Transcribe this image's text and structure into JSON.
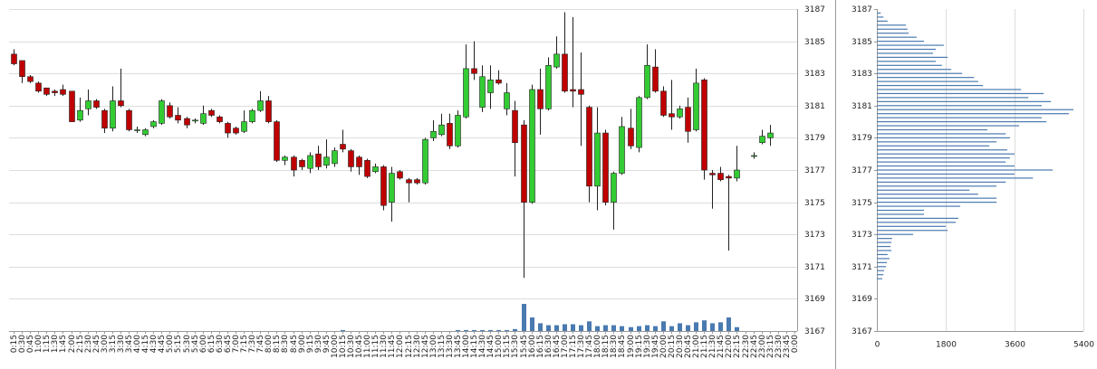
{
  "chart_data": [
    {
      "type": "candlestick",
      "categories": [
        "0:15",
        "0:30",
        "0:45",
        "1:00",
        "1:15",
        "1:30",
        "1:45",
        "2:00",
        "2:15",
        "2:30",
        "2:45",
        "3:00",
        "3:15",
        "3:30",
        "3:45",
        "4:00",
        "4:15",
        "4:30",
        "4:45",
        "5:00",
        "5:15",
        "5:30",
        "5:45",
        "6:00",
        "6:15",
        "6:30",
        "6:45",
        "7:00",
        "7:15",
        "7:30",
        "7:45",
        "8:00",
        "8:15",
        "8:30",
        "8:45",
        "9:00",
        "9:15",
        "9:30",
        "9:45",
        "10:00",
        "10:15",
        "10:30",
        "10:45",
        "11:00",
        "11:15",
        "11:30",
        "11:45",
        "12:00",
        "12:15",
        "12:30",
        "12:45",
        "13:00",
        "13:15",
        "13:30",
        "13:45",
        "14:00",
        "14:15",
        "14:30",
        "14:45",
        "15:00",
        "15:15",
        "15:30",
        "15:45",
        "16:00",
        "16:15",
        "16:30",
        "16:45",
        "17:00",
        "17:15",
        "17:30",
        "17:45",
        "18:00",
        "18:15",
        "18:30",
        "18:45",
        "19:00",
        "19:15",
        "19:30",
        "19:45",
        "20:00",
        "20:15",
        "20:30",
        "20:45",
        "21:00",
        "21:15",
        "21:30",
        "21:45",
        "22:00",
        "22:15",
        "22:30",
        "22:45",
        "23:00",
        "23:15",
        "23:30",
        "23:45",
        "0:00"
      ],
      "open": [
        3184.2,
        3183.8,
        3182.8,
        3182.4,
        3182.1,
        3181.9,
        3182.0,
        3181.9,
        3180.1,
        3180.8,
        3181.3,
        3180.7,
        3179.6,
        3181.3,
        3180.7,
        3179.5,
        3179.2,
        3179.7,
        3179.9,
        3181.0,
        3180.4,
        3180.2,
        3180.1,
        3179.9,
        3180.7,
        3180.3,
        3179.9,
        3179.6,
        3179.4,
        3180.0,
        3180.7,
        3181.3,
        3180.0,
        3177.6,
        3177.8,
        3177.6,
        3177.1,
        3178.0,
        3177.3,
        3177.4,
        3178.6,
        3178.2,
        3177.8,
        3177.6,
        3176.9,
        3177.2,
        3175.0,
        3176.9,
        3176.4,
        3176.4,
        3176.2,
        3179.0,
        3179.2,
        3179.9,
        3178.5,
        3180.3,
        3183.3,
        3180.9,
        3181.8,
        3182.6,
        3180.8,
        3180.7,
        3179.8,
        3175.0,
        3182.0,
        3180.8,
        3183.4,
        3184.2,
        3182.0,
        3182.0,
        3180.9,
        3176.0,
        3179.3,
        3175.0,
        3176.8,
        3179.6,
        3178.4,
        3181.5,
        3183.4,
        3181.9,
        3180.5,
        3180.3,
        3180.9,
        3179.5,
        3182.6,
        3176.8,
        3176.8,
        3176.6,
        3176.5,
        null,
        3177.9,
        3178.7,
        3179.0,
        null,
        null,
        null
      ],
      "high": [
        3184.5,
        3183.8,
        3182.9,
        3182.5,
        3182.1,
        3182.0,
        3182.3,
        3181.9,
        3181.5,
        3182.0,
        3181.4,
        3180.8,
        3182.2,
        3183.3,
        3180.8,
        3179.7,
        3179.6,
        3180.1,
        3181.4,
        3181.2,
        3180.9,
        3180.3,
        3180.2,
        3181.0,
        3180.8,
        3180.4,
        3180.0,
        3179.7,
        3180.7,
        3180.8,
        3181.9,
        3181.6,
        3180.1,
        3177.9,
        3177.9,
        3177.7,
        3178.1,
        3178.5,
        3178.9,
        3178.4,
        3179.5,
        3178.3,
        3177.9,
        3177.7,
        3177.4,
        3177.3,
        3177.2,
        3177.0,
        3176.5,
        3176.5,
        3179.0,
        3180.1,
        3180.5,
        3180.5,
        3180.7,
        3184.8,
        3185.0,
        3183.5,
        3183.5,
        3183.2,
        3182.4,
        3181.3,
        3180.1,
        3182.3,
        3183.3,
        3184.0,
        3185.3,
        3186.8,
        3186.5,
        3184.3,
        3181.0,
        3180.9,
        3179.5,
        3176.9,
        3180.3,
        3180.8,
        3181.6,
        3184.8,
        3184.5,
        3182.2,
        3182.6,
        3181.0,
        3181.5,
        3183.3,
        3182.7,
        3177.0,
        3177.2,
        3176.7,
        3178.5,
        null,
        3178.1,
        3179.5,
        3179.8,
        null,
        null,
        null
      ],
      "low": [
        3183.5,
        3182.4,
        3182.4,
        3181.8,
        3181.6,
        3181.6,
        3181.6,
        3180.0,
        3180.0,
        3180.4,
        3180.8,
        3179.3,
        3179.4,
        3180.9,
        3179.4,
        3179.3,
        3179.1,
        3179.6,
        3179.8,
        3180.2,
        3179.9,
        3179.6,
        3179.9,
        3179.8,
        3180.3,
        3179.9,
        3179.0,
        3179.2,
        3179.3,
        3179.9,
        3180.6,
        3179.9,
        3177.5,
        3177.3,
        3176.6,
        3177.0,
        3176.8,
        3177.0,
        3177.1,
        3177.2,
        3178.1,
        3176.9,
        3176.7,
        3176.5,
        3176.8,
        3174.5,
        3173.8,
        3176.4,
        3175.0,
        3176.1,
        3176.1,
        3178.8,
        3179.1,
        3178.3,
        3178.4,
        3180.2,
        3182.6,
        3180.6,
        3180.8,
        3182.3,
        3180.4,
        3176.6,
        3170.3,
        3174.9,
        3179.2,
        3180.7,
        3183.3,
        3181.8,
        3180.9,
        3178.5,
        3175.0,
        3174.5,
        3174.8,
        3173.3,
        3176.7,
        3178.3,
        3178.1,
        3181.4,
        3181.8,
        3180.3,
        3179.5,
        3180.2,
        3178.7,
        3179.4,
        3176.4,
        3174.6,
        3176.3,
        3172.0,
        3176.3,
        null,
        3177.7,
        3178.6,
        3178.5,
        null,
        null,
        null
      ],
      "close": [
        3183.6,
        3182.8,
        3182.5,
        3181.9,
        3181.7,
        3181.8,
        3181.7,
        3180.0,
        3180.7,
        3181.3,
        3180.9,
        3179.6,
        3181.3,
        3181.0,
        3179.5,
        3179.5,
        3179.5,
        3180.0,
        3181.3,
        3180.3,
        3180.1,
        3179.8,
        3180.1,
        3180.5,
        3180.4,
        3180.0,
        3179.3,
        3179.3,
        3180.0,
        3180.7,
        3181.3,
        3180.0,
        3177.6,
        3177.8,
        3177.0,
        3177.2,
        3177.9,
        3177.2,
        3177.8,
        3178.2,
        3178.3,
        3177.2,
        3177.2,
        3176.6,
        3177.2,
        3174.8,
        3176.8,
        3176.5,
        3176.2,
        3176.2,
        3178.9,
        3179.4,
        3179.8,
        3178.5,
        3180.4,
        3183.3,
        3183.0,
        3182.8,
        3182.6,
        3182.4,
        3181.8,
        3178.7,
        3175.0,
        3182.0,
        3180.8,
        3183.5,
        3184.2,
        3181.9,
        3181.9,
        3181.7,
        3176.0,
        3179.3,
        3175.0,
        3176.8,
        3179.7,
        3178.5,
        3181.5,
        3183.5,
        3181.9,
        3180.4,
        3180.3,
        3180.8,
        3179.4,
        3182.4,
        3177.0,
        3176.7,
        3176.4,
        3176.5,
        3177.0,
        null,
        3177.9,
        3179.1,
        3179.3,
        null,
        null,
        null
      ],
      "volume": [
        0,
        0,
        0,
        0,
        0,
        0,
        0,
        0,
        0,
        0,
        0,
        0,
        0,
        0,
        0,
        0,
        0,
        0,
        0,
        0,
        0,
        0,
        0,
        0,
        0,
        0,
        0,
        0,
        0,
        0,
        0,
        0,
        0,
        0,
        0,
        0,
        0,
        0,
        0,
        0,
        1,
        0,
        0,
        0,
        0,
        0,
        0,
        0,
        0,
        0,
        0,
        0,
        0,
        0,
        1,
        1,
        1,
        1,
        1,
        1,
        1,
        2,
        28,
        14,
        8,
        6,
        6,
        7,
        7,
        6,
        10,
        5,
        6,
        6,
        5,
        4,
        5,
        6,
        5,
        10,
        5,
        8,
        6,
        9,
        11,
        8,
        9,
        14,
        4,
        null,
        null,
        null,
        null,
        null,
        null,
        null
      ],
      "up_color": "#33cc33",
      "down_color": "#c00000",
      "volume_color": "#4a7ab0",
      "ylim": [
        3167,
        3187
      ],
      "yticks": [
        3167,
        3169,
        3171,
        3173,
        3175,
        3177,
        3179,
        3181,
        3183,
        3185,
        3187
      ],
      "grid": true
    },
    {
      "type": "profile",
      "prices": [
        3186.75,
        3186.5,
        3186.25,
        3186,
        3185.75,
        3185.5,
        3185.25,
        3185,
        3184.75,
        3184.5,
        3184.25,
        3184,
        3183.75,
        3183.5,
        3183.25,
        3183,
        3182.75,
        3182.5,
        3182.25,
        3182,
        3181.75,
        3181.5,
        3181.25,
        3181,
        3180.75,
        3180.5,
        3180.25,
        3180,
        3179.75,
        3179.5,
        3179.25,
        3179,
        3178.75,
        3178.5,
        3178.25,
        3178,
        3177.75,
        3177.5,
        3177.25,
        3177,
        3176.75,
        3176.5,
        3176.25,
        3176,
        3175.75,
        3175.5,
        3175.25,
        3175,
        3174.75,
        3174.5,
        3174.25,
        3174,
        3173.75,
        3173.5,
        3173.25,
        3173,
        3172.75,
        3172.5,
        3172.25,
        3172,
        3171.75,
        3171.5,
        3171.25,
        3171,
        3170.75,
        3170.5,
        3170.25
      ],
      "values": [
        100,
        170,
        280,
        760,
        800,
        830,
        1040,
        1230,
        1750,
        1540,
        1470,
        1850,
        1540,
        1700,
        1940,
        2230,
        2540,
        2650,
        2770,
        3770,
        4360,
        3960,
        4550,
        4310,
        5140,
        5020,
        4310,
        4430,
        3720,
        2890,
        3370,
        3480,
        3130,
        2940,
        3410,
        3600,
        3480,
        3370,
        3600,
        4600,
        3600,
        4080,
        3370,
        3130,
        2420,
        2650,
        3130,
        3130,
        2180,
        1230,
        1230,
        2130,
        2060,
        1800,
        1850,
        950,
        400,
        380,
        360,
        380,
        280,
        330,
        260,
        240,
        190,
        170,
        140
      ],
      "color": "#4a7ab0",
      "xlim": [
        0,
        5400
      ],
      "xticks": [
        0,
        1800,
        3600,
        5400
      ],
      "ylim": [
        3167,
        3187
      ],
      "yticks": [
        3167,
        3169,
        3171,
        3173,
        3175,
        3177,
        3179,
        3181,
        3183,
        3185,
        3187
      ],
      "grid": true
    }
  ]
}
